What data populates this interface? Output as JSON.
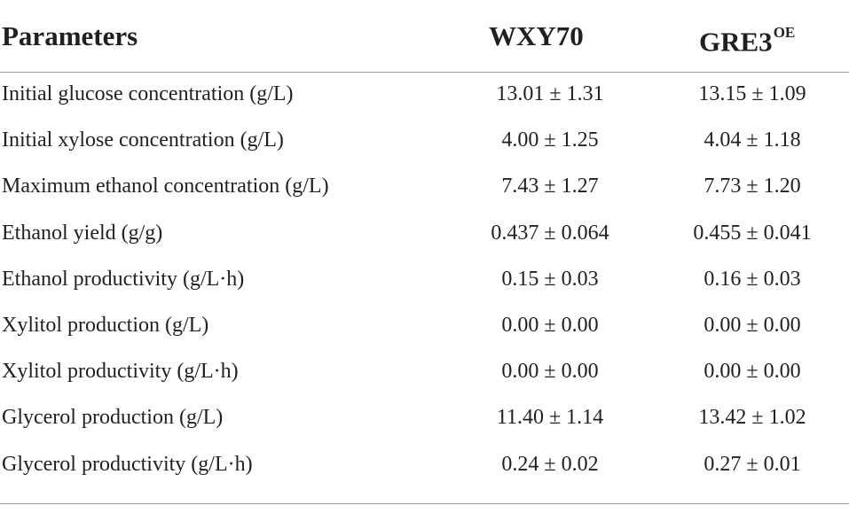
{
  "header": {
    "parameters": "Parameters",
    "col1": "WXY70",
    "col2_base": "GRE3",
    "col2_sup": "OE"
  },
  "rows": [
    {
      "parameter": "Initial glucose concentration (g/L)",
      "wxy70": "13.01 ± 1.31",
      "gre3": "13.15 ± 1.09"
    },
    {
      "parameter": "Initial xylose concentration (g/L)",
      "wxy70": "4.00 ± 1.25",
      "gre3": "4.04 ± 1.18"
    },
    {
      "parameter": "Maximum ethanol concentration (g/L)",
      "wxy70": "7.43 ± 1.27",
      "gre3": "7.73 ± 1.20"
    },
    {
      "parameter": "Ethanol yield (g/g)",
      "wxy70": "0.437 ± 0.064",
      "gre3": "0.455 ± 0.041"
    },
    {
      "parameter": "Ethanol productivity (g/L·h)",
      "wxy70": "0.15 ± 0.03",
      "gre3": "0.16 ± 0.03"
    },
    {
      "parameter": "Xylitol production (g/L)",
      "wxy70": "0.00 ± 0.00",
      "gre3": "0.00 ± 0.00"
    },
    {
      "parameter": "Xylitol productivity (g/L·h)",
      "wxy70": "0.00 ± 0.00",
      "gre3": "0.00 ± 0.00"
    },
    {
      "parameter": "Glycerol production (g/L)",
      "wxy70": "11.40 ± 1.14",
      "gre3": "13.42 ± 1.02"
    },
    {
      "parameter": "Glycerol productivity (g/L·h)",
      "wxy70": "0.24 ± 0.02",
      "gre3": "0.27 ± 0.01"
    }
  ]
}
